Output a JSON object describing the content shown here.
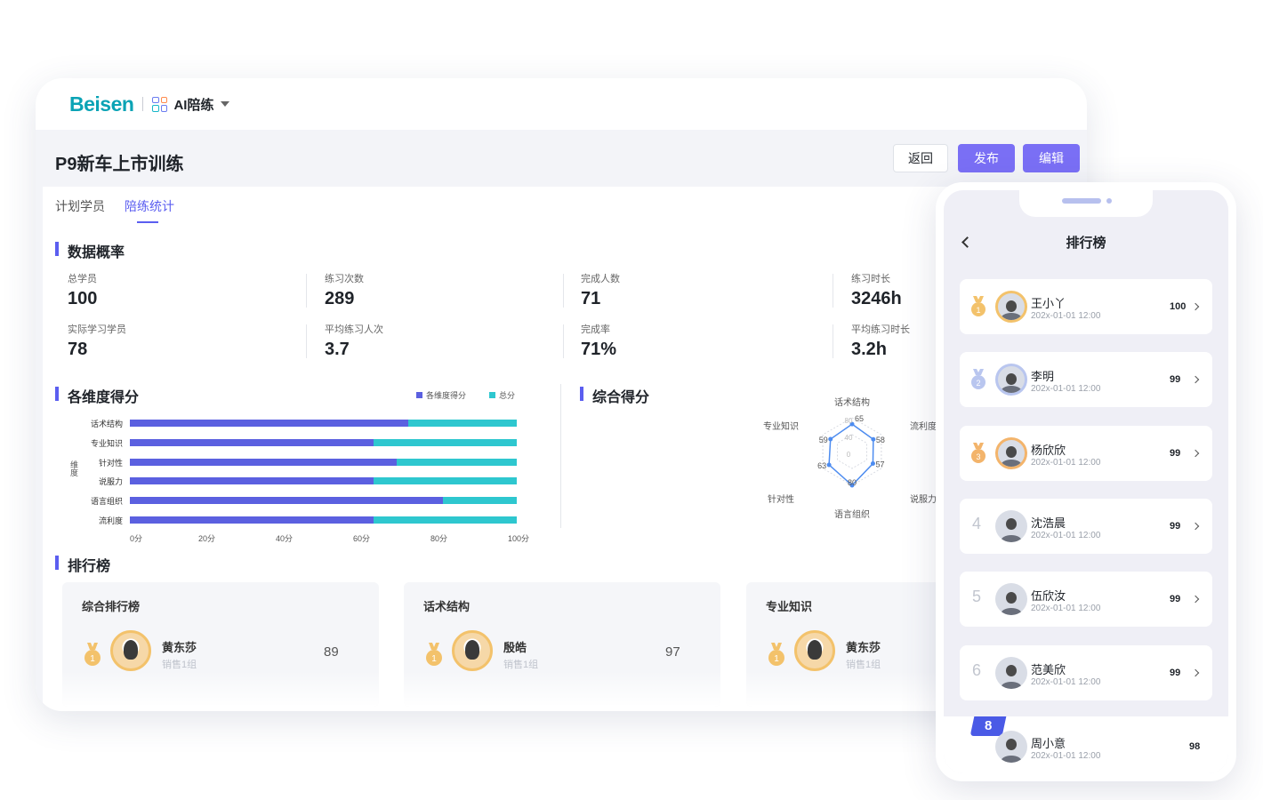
{
  "header": {
    "logo": "Beisen",
    "app_name": "AI陪练"
  },
  "page": {
    "title": "P9新车上市训练",
    "buttons": {
      "back": "返回",
      "publish": "发布",
      "edit": "编辑"
    },
    "tabs": [
      "计划学员",
      "陪练统计"
    ],
    "active_tab": 1
  },
  "overview": {
    "title": "数据概率",
    "stats": [
      {
        "label": "总学员",
        "value": "100"
      },
      {
        "label": "练习次数",
        "value": "289"
      },
      {
        "label": "完成人数",
        "value": "71"
      },
      {
        "label": "练习时长",
        "value": "3246h"
      },
      {
        "label": "实际学习学员",
        "value": "78"
      },
      {
        "label": "平均练习人次",
        "value": "3.7"
      },
      {
        "label": "完成率",
        "value": "71%"
      },
      {
        "label": "平均练习时长",
        "value": "3.2h"
      }
    ]
  },
  "dimension_chart": {
    "title": "各维度得分",
    "legend": [
      "各维度得分",
      "总分"
    ],
    "ylabel": "维度",
    "ticks": [
      "0分",
      "20分",
      "40分",
      "60分",
      "80分",
      "100分"
    ]
  },
  "radar": {
    "title": "综合得分",
    "axes": [
      "话术结构",
      "流利度",
      "说服力",
      "语言组织",
      "针对性",
      "专业知识"
    ],
    "scale_labels": [
      "80",
      "40",
      "0"
    ],
    "value_labels": [
      "65",
      "58",
      "57",
      "80",
      "63",
      "59"
    ]
  },
  "ranking": {
    "title": "排行榜",
    "cards": [
      {
        "title": "综合排行榜",
        "name": "黄东莎",
        "group": "销售1组",
        "score": "89"
      },
      {
        "title": "话术结构",
        "name": "殷皓",
        "group": "销售1组",
        "score": "97"
      },
      {
        "title": "专业知识",
        "name": "黄东莎",
        "group": "销售1组",
        "score": ""
      }
    ]
  },
  "phone": {
    "title": "排行榜",
    "rows": [
      {
        "rank": "1",
        "name": "王小丫",
        "time": "202x-01-01 12:00",
        "score": "100"
      },
      {
        "rank": "2",
        "name": "李明",
        "time": "202x-01-01 12:00",
        "score": "99"
      },
      {
        "rank": "3",
        "name": "杨欣欣",
        "time": "202x-01-01 12:00",
        "score": "99"
      },
      {
        "rank": "4",
        "name": "沈浩晨",
        "time": "202x-01-01 12:00",
        "score": "99"
      },
      {
        "rank": "5",
        "name": "伍欣汝",
        "time": "202x-01-01 12:00",
        "score": "99"
      },
      {
        "rank": "6",
        "name": "范美欣",
        "time": "202x-01-01 12:00",
        "score": "99"
      }
    ],
    "self": {
      "rank": "8",
      "name": "周小意",
      "time": "202x-01-01 12:00",
      "score": "98"
    }
  },
  "colors": {
    "accent": "#5b5ef0",
    "primary_button": "#7a6ff5",
    "bar_dim": "#5b60e0",
    "bar_total": "#2ec7cf",
    "gold": "#f3c26b",
    "silver": "#b9c6ef",
    "bronze": "#f3b46b"
  },
  "chart_data": [
    {
      "type": "bar",
      "orientation": "horizontal",
      "stacked": true,
      "title": "各维度得分",
      "ylabel": "维度",
      "categories": [
        "话术结构",
        "专业知识",
        "针对性",
        "说服力",
        "语言组织",
        "流利度"
      ],
      "series": [
        {
          "name": "各维度得分",
          "values": [
            72,
            63,
            69,
            63,
            81,
            63
          ]
        },
        {
          "name": "总分",
          "values": [
            28,
            37,
            31,
            37,
            19,
            37
          ]
        }
      ],
      "xlim": [
        0,
        100
      ],
      "legend": "top-right"
    },
    {
      "type": "radar",
      "title": "综合得分",
      "categories": [
        "话术结构",
        "流利度",
        "说服力",
        "语言组织",
        "针对性",
        "专业知识"
      ],
      "values": [
        65,
        58,
        57,
        80,
        63,
        59
      ],
      "range": [
        0,
        80
      ]
    }
  ]
}
